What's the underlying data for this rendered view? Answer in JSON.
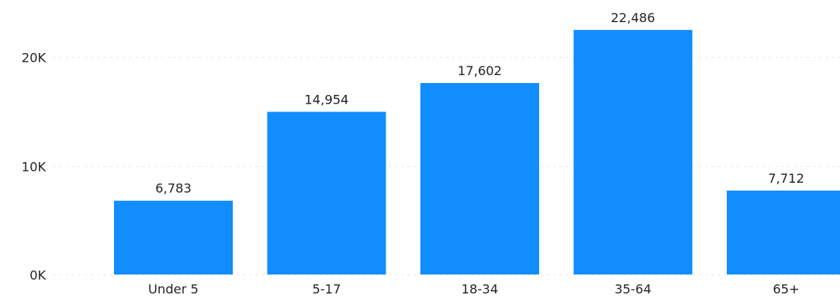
{
  "chart_data": {
    "type": "bar",
    "categories": [
      "Under 5",
      "5-17",
      "18-34",
      "35-64",
      "65+"
    ],
    "values": [
      6783,
      14954,
      17602,
      22486,
      7712
    ],
    "data_labels": [
      "6,783",
      "14,954",
      "17,602",
      "22,486",
      "7,712"
    ],
    "y_ticks": [
      0,
      10000,
      20000
    ],
    "y_tick_labels": [
      "0K",
      "10K",
      "20K"
    ],
    "ylim": [
      0,
      20000
    ],
    "grid": true,
    "bar_color": "#118DFF",
    "text_color": "#252423",
    "grid_color": "#C8C6C4"
  }
}
